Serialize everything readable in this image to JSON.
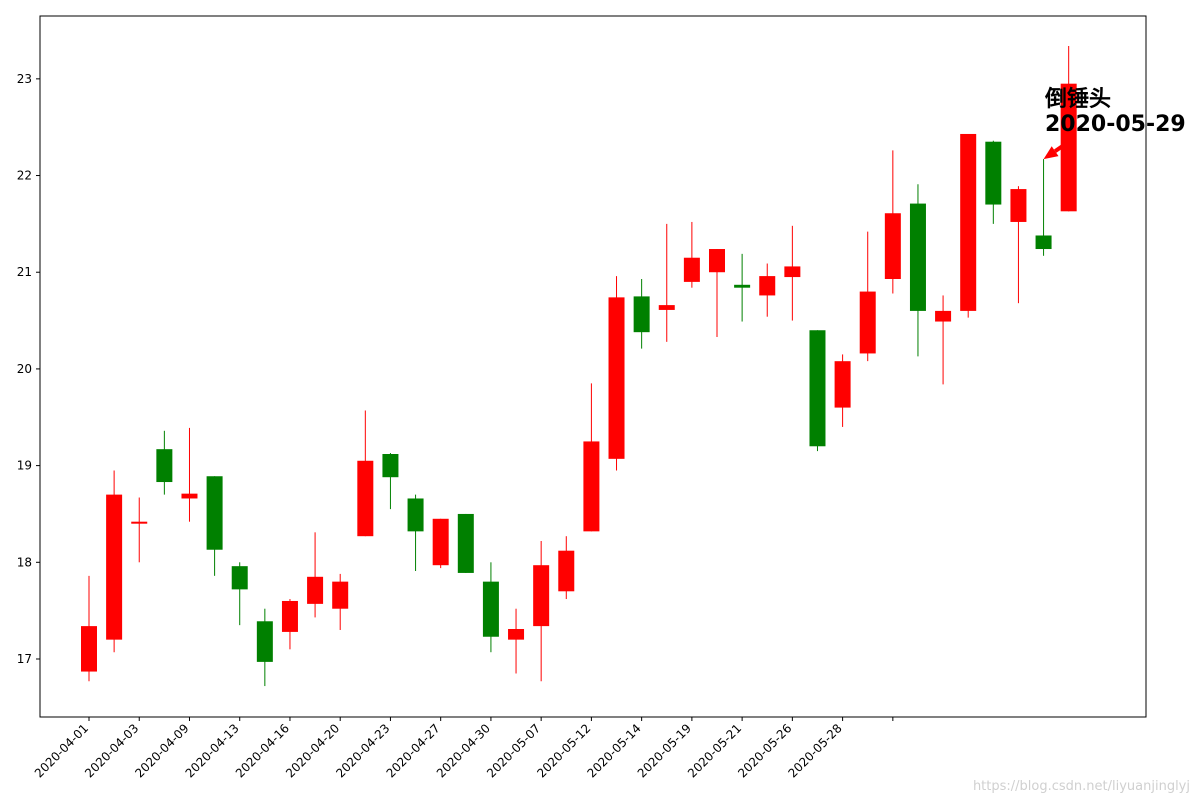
{
  "chart_data": {
    "type": "candlestick",
    "title": "",
    "xlabel": "",
    "ylabel": "",
    "ylim": [
      16.4,
      23.65
    ],
    "y_ticks": [
      17,
      18,
      19,
      20,
      21,
      22,
      23
    ],
    "x_tick_labels": [
      "2020-04-01",
      "2020-04-03",
      "2020-04-09",
      "2020-04-13",
      "2020-04-16",
      "2020-04-20",
      "2020-04-23",
      "2020-04-27",
      "2020-04-30",
      "2020-05-07",
      "2020-05-12",
      "2020-05-14",
      "2020-05-19",
      "2020-05-21",
      "2020-05-26",
      "2020-05-28",
      ""
    ],
    "up_color": "#ff0000",
    "down_color": "#008000",
    "candles": [
      {
        "open": 16.87,
        "close": 17.34,
        "high": 17.86,
        "low": 16.77
      },
      {
        "open": 17.2,
        "close": 18.7,
        "high": 18.95,
        "low": 17.07
      },
      {
        "open": 18.4,
        "close": 18.42,
        "high": 18.67,
        "low": 18.0
      },
      {
        "open": 19.17,
        "close": 18.83,
        "high": 19.36,
        "low": 18.7
      },
      {
        "open": 18.66,
        "close": 18.71,
        "high": 19.39,
        "low": 18.42
      },
      {
        "open": 18.89,
        "close": 18.13,
        "high": 18.89,
        "low": 17.86
      },
      {
        "open": 17.96,
        "close": 17.72,
        "high": 18.0,
        "low": 17.35
      },
      {
        "open": 17.39,
        "close": 16.97,
        "high": 17.52,
        "low": 16.72
      },
      {
        "open": 17.28,
        "close": 17.6,
        "high": 17.62,
        "low": 17.1
      },
      {
        "open": 17.57,
        "close": 17.85,
        "high": 18.31,
        "low": 17.43
      },
      {
        "open": 17.52,
        "close": 17.8,
        "high": 17.88,
        "low": 17.3
      },
      {
        "open": 18.27,
        "close": 19.05,
        "high": 19.57,
        "low": 18.27
      },
      {
        "open": 19.12,
        "close": 18.88,
        "high": 19.13,
        "low": 18.55
      },
      {
        "open": 18.66,
        "close": 18.32,
        "high": 18.7,
        "low": 17.91
      },
      {
        "open": 17.97,
        "close": 18.45,
        "high": 18.45,
        "low": 17.94
      },
      {
        "open": 18.5,
        "close": 17.89,
        "high": 18.5,
        "low": 17.89
      },
      {
        "open": 17.8,
        "close": 17.23,
        "high": 18.0,
        "low": 17.07
      },
      {
        "open": 17.2,
        "close": 17.31,
        "high": 17.52,
        "low": 16.85
      },
      {
        "open": 17.34,
        "close": 17.97,
        "high": 18.22,
        "low": 16.77
      },
      {
        "open": 17.7,
        "close": 18.12,
        "high": 18.27,
        "low": 17.62
      },
      {
        "open": 18.32,
        "close": 19.25,
        "high": 19.85,
        "low": 18.32
      },
      {
        "open": 19.07,
        "close": 20.74,
        "high": 20.96,
        "low": 18.95
      },
      {
        "open": 20.75,
        "close": 20.38,
        "high": 20.93,
        "low": 20.21
      },
      {
        "open": 20.61,
        "close": 20.66,
        "high": 21.5,
        "low": 20.28
      },
      {
        "open": 20.9,
        "close": 21.15,
        "high": 21.52,
        "low": 20.84
      },
      {
        "open": 21.0,
        "close": 21.24,
        "high": 21.24,
        "low": 20.33
      },
      {
        "open": 20.87,
        "close": 20.84,
        "high": 21.19,
        "low": 20.49
      },
      {
        "open": 20.76,
        "close": 20.96,
        "high": 21.09,
        "low": 20.54
      },
      {
        "open": 20.95,
        "close": 21.06,
        "high": 21.48,
        "low": 20.5
      },
      {
        "open": 20.4,
        "close": 19.2,
        "high": 20.4,
        "low": 19.15
      },
      {
        "open": 19.6,
        "close": 20.08,
        "high": 20.15,
        "low": 19.4
      },
      {
        "open": 20.16,
        "close": 20.8,
        "high": 21.42,
        "low": 20.08
      },
      {
        "open": 20.93,
        "close": 21.61,
        "high": 22.26,
        "low": 20.78
      },
      {
        "open": 21.71,
        "close": 20.6,
        "high": 21.91,
        "low": 20.13
      },
      {
        "open": 20.49,
        "close": 20.6,
        "high": 20.76,
        "low": 19.84
      },
      {
        "open": 20.6,
        "close": 22.43,
        "high": 22.43,
        "low": 20.53
      },
      {
        "open": 22.35,
        "close": 21.7,
        "high": 22.36,
        "low": 21.5
      },
      {
        "open": 21.52,
        "close": 21.86,
        "high": 21.89,
        "low": 20.68
      },
      {
        "open": 21.38,
        "close": 21.24,
        "high": 22.17,
        "low": 21.17
      },
      {
        "open": 21.63,
        "close": 22.95,
        "high": 23.34,
        "low": 21.63
      }
    ],
    "annotations": [
      {
        "text_line1": "倒锤头",
        "text_line2": "2020-05-29",
        "target_index": 38,
        "target_value": 22.17,
        "arrow_color": "#ff0000"
      }
    ]
  },
  "watermark": "https://blog.csdn.net/liyuanjinglyj"
}
